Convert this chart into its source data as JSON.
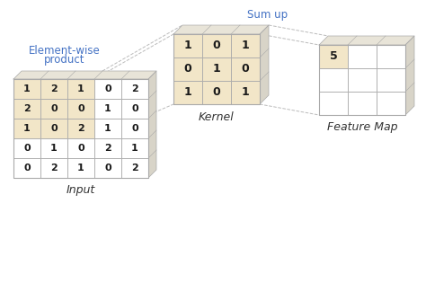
{
  "input_matrix": [
    [
      1,
      2,
      1,
      0,
      2
    ],
    [
      2,
      0,
      0,
      1,
      0
    ],
    [
      1,
      0,
      2,
      1,
      0
    ],
    [
      0,
      1,
      0,
      2,
      1
    ],
    [
      0,
      2,
      1,
      0,
      2
    ]
  ],
  "kernel_matrix": [
    [
      1,
      0,
      1
    ],
    [
      0,
      1,
      0
    ],
    [
      1,
      0,
      1
    ]
  ],
  "feature_map_matrix": [
    [
      5,
      null,
      null
    ],
    [
      null,
      null,
      null
    ],
    [
      null,
      null,
      null
    ]
  ],
  "highlight_color": "#F2E6C8",
  "grid_color": "#AAAAAA",
  "cell_color": "#FFFFFF",
  "label_color": "#4472C4",
  "text_color": "#1a1a1a",
  "bg_color": "#FFFFFF",
  "input_label": "Input",
  "kernel_label": "Kernel",
  "feature_map_label": "Feature Map",
  "element_wise_label1": "Element-wise",
  "element_wise_label2": "product",
  "sum_up_label": "Sum up"
}
